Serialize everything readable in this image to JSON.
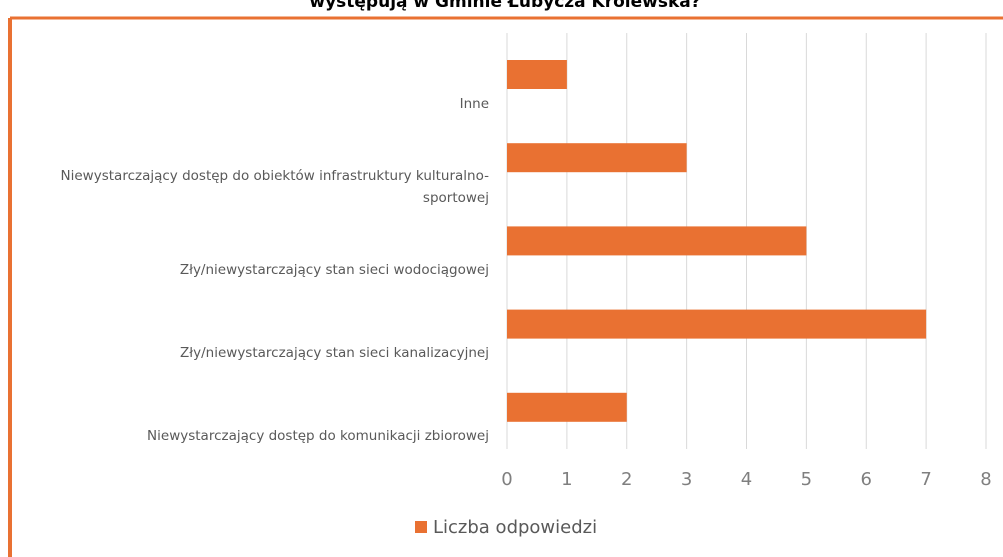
{
  "chart_data": {
    "type": "bar",
    "orientation": "horizontal",
    "title": "występują w Gminie Łubycza Królewska?",
    "categories": [
      "Inne",
      "Niewystarczający dostęp do obiektów infrastruktury kulturalno-sportowej",
      "Zły/niewystarczający stan sieci wodociągowej",
      "Zły/niewystarczający stan sieci kanalizacyjnej",
      "Niewystarczający dostęp do komunikacji zbiorowej"
    ],
    "series": [
      {
        "name": "Liczba odpowiedzi",
        "color": "#e97132",
        "values": [
          1,
          3,
          5,
          7,
          2
        ]
      }
    ],
    "xlim": [
      0,
      8
    ],
    "xticks": [
      0,
      1,
      2,
      3,
      4,
      5,
      6,
      7,
      8
    ],
    "grid": true,
    "legend": "bottom"
  }
}
